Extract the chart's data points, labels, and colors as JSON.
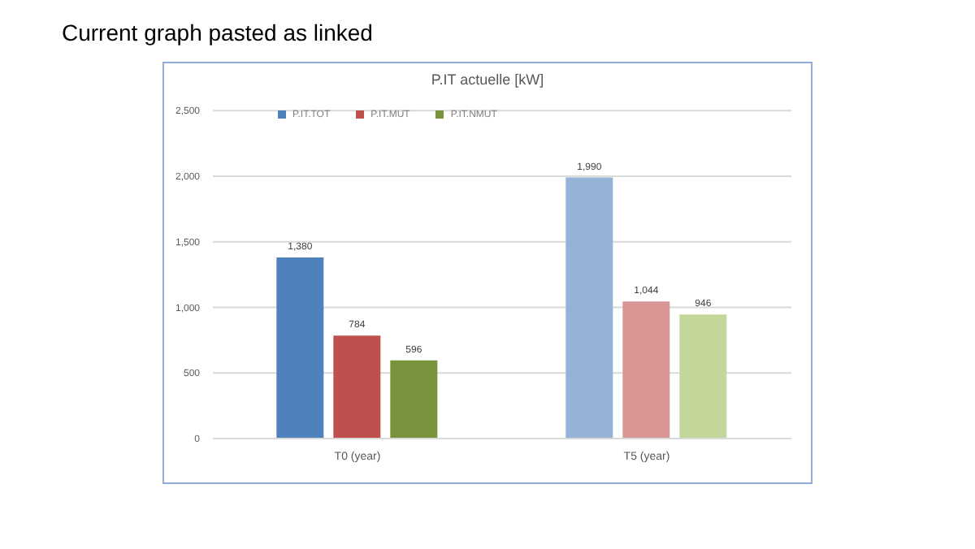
{
  "chart_data": {
    "type": "bar",
    "title": "P.IT actuelle [kW]",
    "annotations": [
      "Current graph pasted as linked"
    ],
    "categories": [
      "T0 (year)",
      "T5 (year)"
    ],
    "series": [
      {
        "name": "P.IT.TOT",
        "color": "#4f81bd",
        "colors": [
          "#4f81bd",
          "#95b3d7"
        ],
        "values": [
          1380,
          1990
        ],
        "value_labels": [
          "1,380",
          "1,990"
        ]
      },
      {
        "name": "P.IT.MUT",
        "color": "#c0504d",
        "colors": [
          "#c0504d",
          "#da9694"
        ],
        "values": [
          784,
          1044
        ],
        "value_labels": [
          "784",
          "1,044"
        ]
      },
      {
        "name": "P.IT.NMUT",
        "color": "#77933c",
        "colors": [
          "#77933c",
          "#c4d79b"
        ],
        "values": [
          596,
          946
        ],
        "value_labels": [
          "596",
          "946"
        ]
      }
    ],
    "ylim": [
      0,
      2500
    ],
    "yticks": [
      0,
      500,
      {
        "value": 1000,
        "label": "1,000"
      },
      {
        "value": 1500,
        "label": "1,500"
      },
      {
        "value": 2000,
        "label": "2,000"
      },
      {
        "value": 2500,
        "label": "2,500"
      }
    ],
    "grid": "y",
    "legend": "top left"
  }
}
